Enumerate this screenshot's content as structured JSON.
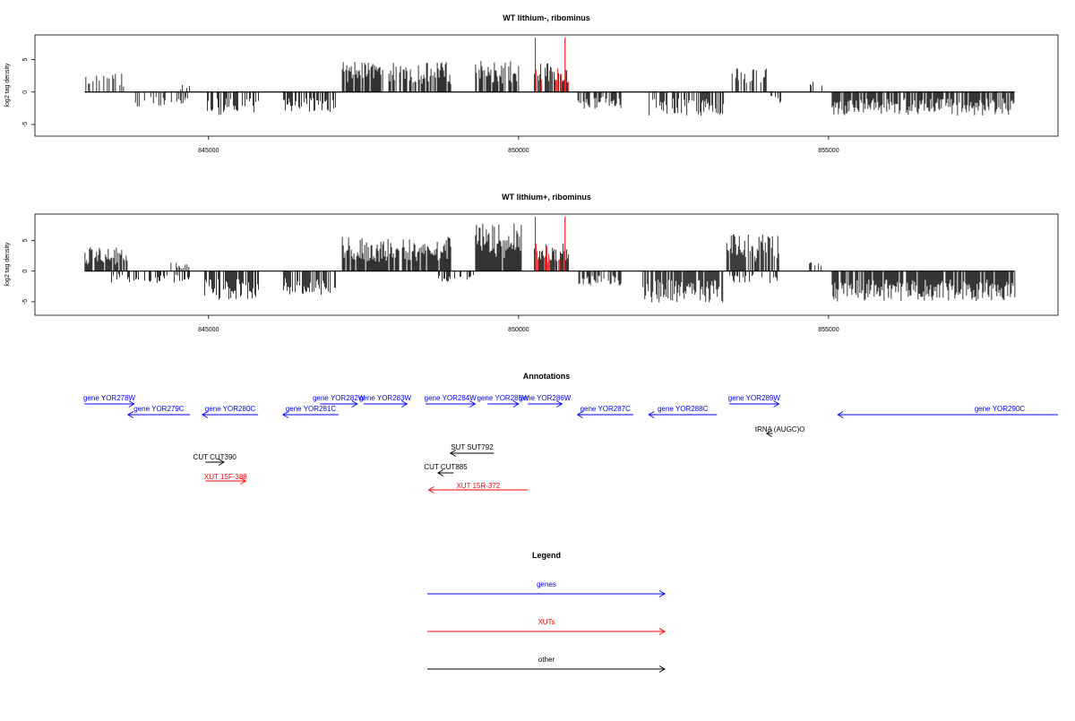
{
  "chart_data": [
    {
      "type": "bar",
      "title": "WT lithium-, ribominus",
      "ylabel": "log2 tag density",
      "xlabel": "",
      "xlim": [
        842200,
        858700
      ],
      "ylim": [
        -6.8,
        8.8
      ],
      "x_ticks": [
        845000,
        850000,
        855000
      ],
      "x_tick_labels": [
        "845000",
        "850000",
        "855000"
      ],
      "y_ticks": [
        -5,
        0,
        5
      ],
      "y_tick_labels": [
        "-5",
        "0",
        "5"
      ],
      "baseline_x": [
        843000,
        858000
      ],
      "signal_colors": {
        "main": "#000000",
        "highlight": "#ff0000"
      },
      "red_markers": [
        850270,
        850750
      ],
      "plus_strand_regions": [
        {
          "x_start": 843000,
          "x_end": 843650,
          "height": 2.2,
          "density": 0.3
        },
        {
          "x_start": 844500,
          "x_end": 844700,
          "height": 1.0,
          "density": 0.2
        },
        {
          "x_start": 847150,
          "x_end": 848900,
          "height": 3.6,
          "density": 0.75
        },
        {
          "x_start": 849300,
          "x_end": 850050,
          "height": 3.7,
          "density": 0.7
        },
        {
          "x_start": 850250,
          "x_end": 850800,
          "height": 3.4,
          "density": 0.8
        },
        {
          "x_start": 853350,
          "x_end": 854100,
          "height": 2.8,
          "density": 0.45
        },
        {
          "x_start": 854700,
          "x_end": 854900,
          "height": 1.5,
          "density": 0.2
        }
      ],
      "minus_strand_regions": [
        {
          "x_start": 843800,
          "x_end": 844700,
          "height": -1.8,
          "density": 0.3
        },
        {
          "x_start": 844900,
          "x_end": 845800,
          "height": -2.8,
          "density": 0.6
        },
        {
          "x_start": 846200,
          "x_end": 847050,
          "height": -2.4,
          "density": 0.6
        },
        {
          "x_start": 850950,
          "x_end": 851650,
          "height": -2.0,
          "density": 0.5
        },
        {
          "x_start": 852100,
          "x_end": 853300,
          "height": -2.8,
          "density": 0.55
        },
        {
          "x_start": 854050,
          "x_end": 854250,
          "height": -1.5,
          "density": 0.3
        },
        {
          "x_start": 855050,
          "x_end": 858000,
          "height": -2.8,
          "density": 0.7
        }
      ]
    },
    {
      "type": "bar",
      "title": "WT lithium+, ribominus",
      "ylabel": "log2 tag density",
      "xlabel": "",
      "xlim": [
        842200,
        858700
      ],
      "ylim": [
        -7.2,
        9.3
      ],
      "x_ticks": [
        845000,
        850000,
        855000
      ],
      "x_tick_labels": [
        "845000",
        "850000",
        "855000"
      ],
      "y_ticks": [
        -5,
        0,
        5
      ],
      "y_tick_labels": [
        "-5",
        "0",
        "5"
      ],
      "baseline_x": [
        843000,
        858000
      ],
      "signal_colors": {
        "main": "#000000",
        "highlight": "#ff0000"
      },
      "red_markers": [
        850270,
        850750
      ],
      "plus_strand_regions": [
        {
          "x_start": 843000,
          "x_end": 843700,
          "height": 3.0,
          "density": 0.8
        },
        {
          "x_start": 844300,
          "x_end": 844700,
          "height": 1.2,
          "density": 0.3
        },
        {
          "x_start": 847150,
          "x_end": 848900,
          "height": 4.3,
          "density": 0.85
        },
        {
          "x_start": 849300,
          "x_end": 850050,
          "height": 6.0,
          "density": 0.95
        },
        {
          "x_start": 850250,
          "x_end": 850800,
          "height": 3.5,
          "density": 0.9
        },
        {
          "x_start": 853350,
          "x_end": 854200,
          "height": 4.6,
          "density": 0.8
        },
        {
          "x_start": 854600,
          "x_end": 854900,
          "height": 2.0,
          "density": 0.4
        }
      ],
      "minus_strand_regions": [
        {
          "x_start": 843400,
          "x_end": 844700,
          "height": -1.5,
          "density": 0.5
        },
        {
          "x_start": 844900,
          "x_end": 845800,
          "height": -3.6,
          "density": 0.8
        },
        {
          "x_start": 846200,
          "x_end": 847050,
          "height": -3.0,
          "density": 0.75
        },
        {
          "x_start": 848700,
          "x_end": 849300,
          "height": -1.5,
          "density": 0.4
        },
        {
          "x_start": 850950,
          "x_end": 851650,
          "height": -1.8,
          "density": 0.6
        },
        {
          "x_start": 852000,
          "x_end": 853300,
          "height": -4.0,
          "density": 0.8
        },
        {
          "x_start": 853400,
          "x_end": 854200,
          "height": -1.5,
          "density": 0.4
        },
        {
          "x_start": 855050,
          "x_end": 858000,
          "height": -3.8,
          "density": 0.85
        }
      ]
    }
  ],
  "annotations": {
    "title": "Annotations",
    "genes": [
      {
        "label": "gene YOR278W",
        "start": 843000,
        "end": 843800,
        "direction": "right"
      },
      {
        "label": "gene YOR279C",
        "start": 843700,
        "end": 844700,
        "direction": "left"
      },
      {
        "label": "gene YOR280C",
        "start": 844900,
        "end": 845800,
        "direction": "left"
      },
      {
        "label": "gene YOR281C",
        "start": 846200,
        "end": 847100,
        "direction": "left"
      },
      {
        "label": "gene YOR282W",
        "start": 846800,
        "end": 847400,
        "direction": "right"
      },
      {
        "label": "gene YOR283W",
        "start": 847500,
        "end": 848200,
        "direction": "right"
      },
      {
        "label": "gene YOR284W",
        "start": 848500,
        "end": 849300,
        "direction": "right"
      },
      {
        "label": "gene YOR285W",
        "start": 849500,
        "end": 850000,
        "direction": "right"
      },
      {
        "label": "gene YOR286W",
        "start": 850150,
        "end": 850700,
        "direction": "right"
      },
      {
        "label": "gene YOR287C",
        "start": 850950,
        "end": 851850,
        "direction": "left"
      },
      {
        "label": "gene YOR288C",
        "start": 852100,
        "end": 853200,
        "direction": "left"
      },
      {
        "label": "gene YOR289W",
        "start": 853400,
        "end": 854200,
        "direction": "right"
      },
      {
        "label": "gene YOR290C",
        "start": 855150,
        "end": 858700,
        "direction": "left"
      }
    ],
    "other": [
      {
        "label": "tRNA (AUGC)O",
        "start": 854000,
        "end": 854100,
        "direction": "left"
      },
      {
        "label": "SUT SUT792",
        "start": 848900,
        "end": 849600,
        "direction": "left"
      },
      {
        "label": "CUT CUT390",
        "start": 844950,
        "end": 845250,
        "direction": "right"
      },
      {
        "label": "CUT CUT885",
        "start": 848700,
        "end": 848950,
        "direction": "left"
      }
    ],
    "xuts": [
      {
        "label": "XUT 15F-388",
        "start": 844950,
        "end": 845600,
        "direction": "right"
      },
      {
        "label": "XUT 15R-372",
        "start": 848550,
        "end": 850150,
        "direction": "left"
      }
    ]
  },
  "legend": {
    "title": "Legend",
    "items": [
      {
        "label": "genes",
        "color": "#0000ff"
      },
      {
        "label": "XUTs",
        "color": "#ff0000"
      },
      {
        "label": "other",
        "color": "#000000"
      }
    ]
  }
}
